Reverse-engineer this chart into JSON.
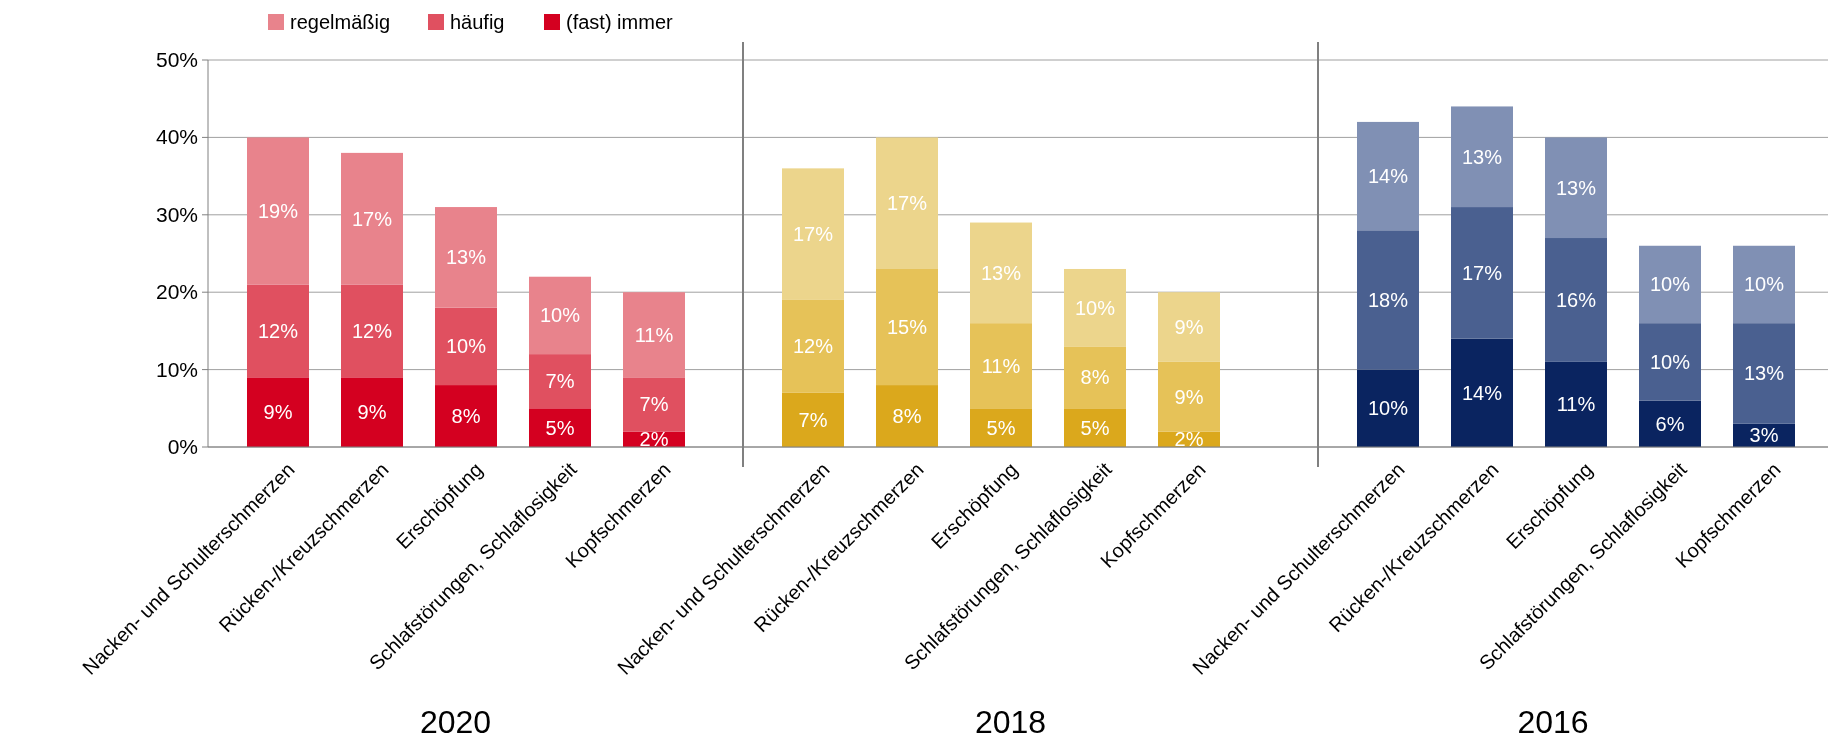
{
  "chart_data": [
    {
      "type": "bar",
      "stacked": true,
      "xlabel": "2020",
      "categories": [
        "Nacken- und Schulterschmerzen",
        "Rücken-/Kreuzschmerzen",
        "Erschöpfung",
        "Schlafstörungen, Schlaflosigkeit",
        "Kopfschmerzen"
      ],
      "ylim": [
        0,
        50
      ],
      "yticks": [
        {
          "value": 0,
          "label": "0%"
        },
        {
          "value": 10,
          "label": "10%"
        },
        {
          "value": 20,
          "label": "20%"
        },
        {
          "value": 30,
          "label": "30%"
        },
        {
          "value": 40,
          "label": "40%"
        },
        {
          "value": 50,
          "label": "50%"
        }
      ],
      "grid": "y",
      "legend": "top left",
      "series": [
        {
          "name": "(fast) immer",
          "color": "#d40020",
          "values": [
            9,
            9,
            8,
            5,
            2
          ],
          "value_labels": [
            "9%",
            "9%",
            "8%",
            "5%",
            "2%"
          ]
        },
        {
          "name": "häufig",
          "color": "#e05060",
          "values": [
            12,
            12,
            10,
            7,
            7
          ],
          "value_labels": [
            "12%",
            "12%",
            "10%",
            "7%",
            "7%"
          ]
        },
        {
          "name": "regelmäßig",
          "color": "#e8838c",
          "values": [
            19,
            17,
            13,
            10,
            11
          ],
          "value_labels": [
            "19%",
            "17%",
            "13%",
            "10%",
            "11%"
          ]
        }
      ]
    },
    {
      "type": "bar",
      "stacked": true,
      "xlabel": "2018",
      "categories": [
        "Nacken- und Schulterschmerzen",
        "Rücken-/Kreuzschmerzen",
        "Erschöpfung",
        "Schlafstörungen, Schlaflosigkeit",
        "Kopfschmerzen"
      ],
      "ylim": [
        0,
        50
      ],
      "grid": "y",
      "tick_labels": "x",
      "series": [
        {
          "color": "#dba81c",
          "values": [
            7,
            8,
            5,
            5,
            2
          ],
          "value_labels": [
            "7%",
            "8%",
            "5%",
            "5%",
            "2%"
          ]
        },
        {
          "color": "#e6c258",
          "values": [
            12,
            15,
            11,
            8,
            9
          ],
          "value_labels": [
            "12%",
            "15%",
            "11%",
            "8%",
            "9%"
          ]
        },
        {
          "color": "#ecd58c",
          "values": [
            17,
            17,
            13,
            10,
            9
          ],
          "value_labels": [
            "17%",
            "17%",
            "13%",
            "10%",
            "9%"
          ]
        }
      ]
    },
    {
      "type": "bar",
      "stacked": true,
      "xlabel": "2016",
      "categories": [
        "Nacken- und Schulterschmerzen",
        "Rücken-/Kreuzschmerzen",
        "Erschöpfung",
        "Schlafstörungen, Schlaflosigkeit",
        "Kopfschmerzen"
      ],
      "ylim": [
        0,
        50
      ],
      "grid": "y",
      "tick_labels": "x",
      "series": [
        {
          "color": "#0a2460",
          "values": [
            10,
            14,
            11,
            6,
            3
          ],
          "value_labels": [
            "10%",
            "14%",
            "11%",
            "6%",
            "3%"
          ]
        },
        {
          "color": "#4a6090",
          "values": [
            18,
            17,
            16,
            10,
            13
          ],
          "value_labels": [
            "18%",
            "17%",
            "16%",
            "10%",
            "13%"
          ]
        },
        {
          "color": "#8090b4",
          "values": [
            14,
            13,
            13,
            10,
            10
          ],
          "value_labels": [
            "14%",
            "13%",
            "13%",
            "10%",
            "10%"
          ]
        }
      ]
    }
  ]
}
